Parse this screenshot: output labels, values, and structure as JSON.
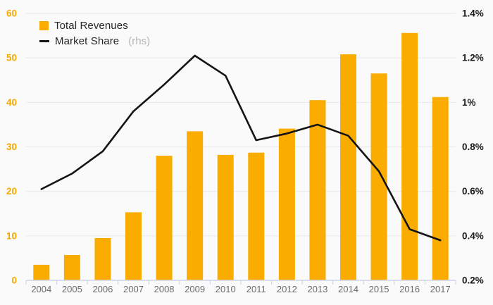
{
  "chart_data": {
    "type": "bar+line",
    "categories": [
      "2004",
      "2005",
      "2006",
      "2007",
      "2008",
      "2009",
      "2010",
      "2011",
      "2012",
      "2013",
      "2014",
      "2015",
      "2016",
      "2017"
    ],
    "series": [
      {
        "name": "Total Revenues",
        "type": "bar",
        "axis": "left",
        "color": "#FBAC00",
        "values": [
          3.5,
          5.7,
          9.5,
          15.3,
          28.0,
          33.5,
          28.2,
          28.7,
          34.1,
          40.5,
          50.8,
          46.5,
          55.6,
          41.2
        ]
      },
      {
        "name": "Market Share",
        "axis_note": "(rhs)",
        "type": "line",
        "axis": "right",
        "color": "#141414",
        "values_pct": [
          0.61,
          0.68,
          0.78,
          0.96,
          1.08,
          1.21,
          1.12,
          0.83,
          0.86,
          0.9,
          0.85,
          0.69,
          0.43,
          0.38
        ]
      }
    ],
    "left_axis": {
      "min": 0,
      "max": 60,
      "tick_labels": [
        "0",
        "10",
        "20",
        "30",
        "40",
        "50",
        "60"
      ],
      "label_color": "#F5A800"
    },
    "right_axis": {
      "min": 0.2,
      "max": 1.4,
      "tick_labels": [
        "0.2%",
        "0.4%",
        "0.6%",
        "0.8%",
        "1%",
        "1.2%",
        "1.4%"
      ],
      "label_color": "#1a1a1a"
    },
    "x_axis": {
      "label_color": "#6b6b6b",
      "axis_line_color": "#ccd5ea",
      "gridline_color": "#e8e8e8"
    },
    "grid": true,
    "legend_position": "top-left",
    "background": "#fafafa"
  }
}
